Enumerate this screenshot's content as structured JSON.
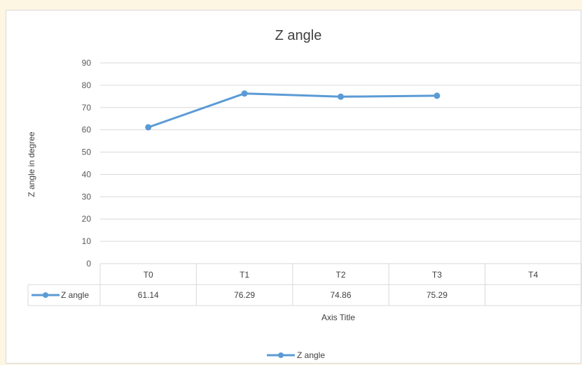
{
  "chart_data": {
    "type": "line",
    "title": "Z angle",
    "xlabel": "Axis Title",
    "ylabel": "Z angle in degree",
    "categories": [
      "T0",
      "T1",
      "T2",
      "T3",
      "T4"
    ],
    "series": [
      {
        "name": "Z angle",
        "values": [
          61.14,
          76.29,
          74.86,
          75.29,
          null
        ],
        "labels": [
          "61.14",
          "76.29",
          "74.86",
          "75.29",
          ""
        ]
      }
    ],
    "ylim": [
      0,
      90
    ],
    "yticks": [
      0,
      10,
      20,
      30,
      40,
      50,
      60,
      70,
      80,
      90
    ],
    "grid": true,
    "data_table": true,
    "legend": "bottom",
    "colors": {
      "series": "#5b9bd5",
      "grid": "#d9d9d9",
      "background": "#fdf6e3"
    }
  }
}
